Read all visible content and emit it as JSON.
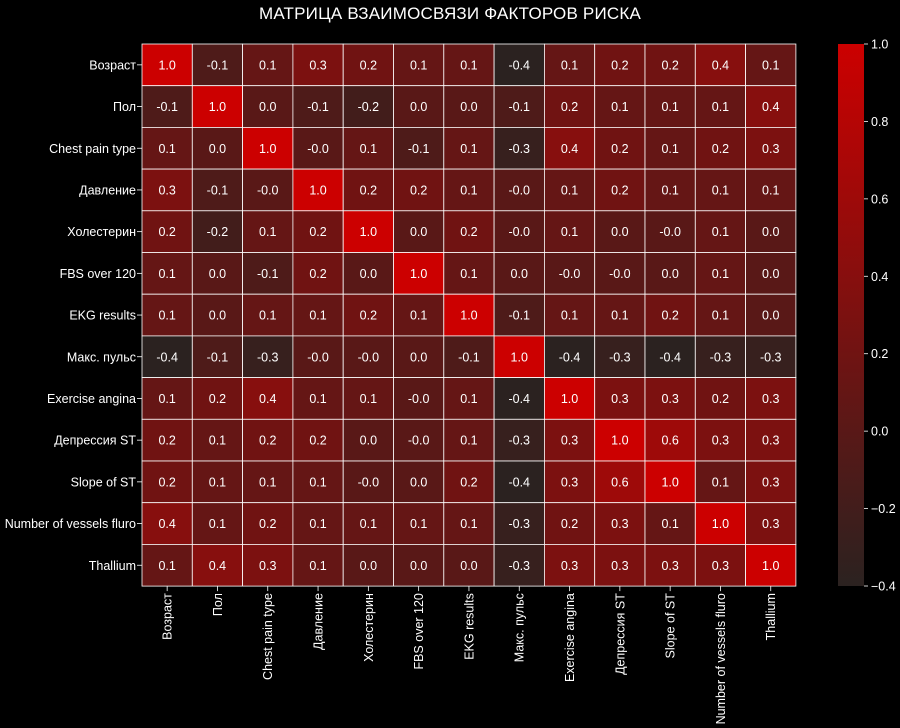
{
  "chart_data": {
    "type": "heatmap",
    "title": "МАТРИЦА ВЗАИМОСВЯЗИ ФАКТОРОВ РИСКА",
    "labels": [
      "Возраст",
      "Пол",
      "Chest pain type",
      "Давление",
      "Холестерин",
      "FBS over 120",
      "EKG results",
      "Макс. пульс",
      "Exercise angina",
      "Депрессия ST",
      "Slope of ST",
      "Number of vessels fluro",
      "Thallium"
    ],
    "values": [
      [
        1.0,
        -0.1,
        0.1,
        0.3,
        0.2,
        0.1,
        0.1,
        -0.4,
        0.1,
        0.2,
        0.2,
        0.4,
        0.1
      ],
      [
        -0.1,
        1.0,
        0.0,
        -0.1,
        -0.2,
        0.0,
        0.0,
        -0.1,
        0.2,
        0.1,
        0.1,
        0.1,
        0.4
      ],
      [
        0.1,
        0.0,
        1.0,
        -0.0,
        0.1,
        -0.1,
        0.1,
        -0.3,
        0.4,
        0.2,
        0.1,
        0.2,
        0.3
      ],
      [
        0.3,
        -0.1,
        -0.0,
        1.0,
        0.2,
        0.2,
        0.1,
        -0.0,
        0.1,
        0.2,
        0.1,
        0.1,
        0.1
      ],
      [
        0.2,
        -0.2,
        0.1,
        0.2,
        1.0,
        0.0,
        0.2,
        -0.0,
        0.1,
        0.0,
        -0.0,
        0.1,
        0.0
      ],
      [
        0.1,
        0.0,
        -0.1,
        0.2,
        0.0,
        1.0,
        0.1,
        0.0,
        -0.0,
        -0.0,
        0.0,
        0.1,
        0.0
      ],
      [
        0.1,
        0.0,
        0.1,
        0.1,
        0.2,
        0.1,
        1.0,
        -0.1,
        0.1,
        0.1,
        0.2,
        0.1,
        0.0
      ],
      [
        -0.4,
        -0.1,
        -0.3,
        -0.0,
        -0.0,
        0.0,
        -0.1,
        1.0,
        -0.4,
        -0.3,
        -0.4,
        -0.3,
        -0.3
      ],
      [
        0.1,
        0.2,
        0.4,
        0.1,
        0.1,
        -0.0,
        0.1,
        -0.4,
        1.0,
        0.3,
        0.3,
        0.2,
        0.3
      ],
      [
        0.2,
        0.1,
        0.2,
        0.2,
        0.0,
        -0.0,
        0.1,
        -0.3,
        0.3,
        1.0,
        0.6,
        0.3,
        0.3
      ],
      [
        0.2,
        0.1,
        0.1,
        0.1,
        -0.0,
        0.0,
        0.2,
        -0.4,
        0.3,
        0.6,
        1.0,
        0.1,
        0.3
      ],
      [
        0.4,
        0.1,
        0.2,
        0.1,
        0.1,
        0.1,
        0.1,
        -0.3,
        0.2,
        0.3,
        0.1,
        1.0,
        0.3
      ],
      [
        0.1,
        0.4,
        0.3,
        0.1,
        0.0,
        0.0,
        0.0,
        -0.3,
        0.3,
        0.3,
        0.3,
        0.3,
        1.0
      ]
    ],
    "value_range": [
      -0.4,
      1.0
    ],
    "colorbar_ticks": [
      1.0,
      0.8,
      0.6,
      0.4,
      0.2,
      0.0,
      -0.2,
      -0.4
    ],
    "colorbar_tick_labels": [
      "1.0",
      "0.8",
      "0.6",
      "0.4",
      "0.2",
      "0.0",
      "−0.2",
      "−0.4"
    ],
    "color_low": "#2b2220",
    "color_high": "#cc0000",
    "cell_border_color": "#ffffff",
    "background": "#000000",
    "text_color": "#ffffff",
    "grid": false,
    "legend": "colorbar-right"
  }
}
